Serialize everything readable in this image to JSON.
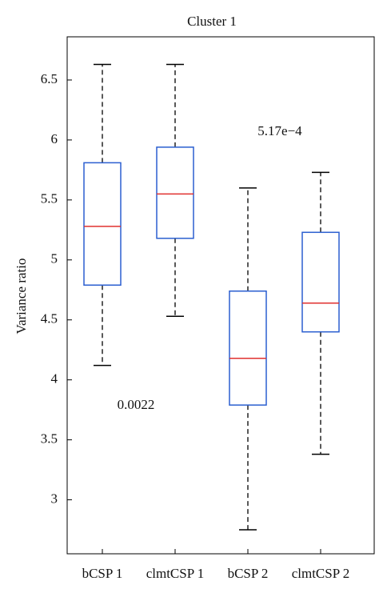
{
  "chart_data": {
    "type": "box",
    "title": "Cluster 1",
    "ylabel": "Variance ratio",
    "categories": [
      "bCSP 1",
      "clmtCSP 1",
      "bCSP 2",
      "clmtCSP 2"
    ],
    "boxes": [
      {
        "low": 4.12,
        "q1": 4.79,
        "median": 5.28,
        "q3": 5.81,
        "high": 6.63
      },
      {
        "low": 4.53,
        "q1": 5.18,
        "median": 5.55,
        "q3": 5.94,
        "high": 6.63
      },
      {
        "low": 2.75,
        "q1": 3.79,
        "median": 4.18,
        "q3": 4.74,
        "high": 5.6
      },
      {
        "low": 3.38,
        "q1": 4.4,
        "median": 4.64,
        "q3": 5.23,
        "high": 5.73
      }
    ],
    "box_color": "#2b5fd0",
    "median_color": "#e0302f",
    "whisker_color": "#000000",
    "annotations": [
      "0.0022",
      "5.17e−4"
    ],
    "ylim": [
      2.55,
      6.86
    ],
    "yticks": [
      3,
      3.5,
      4,
      4.5,
      5,
      5.5,
      6,
      6.5
    ]
  }
}
